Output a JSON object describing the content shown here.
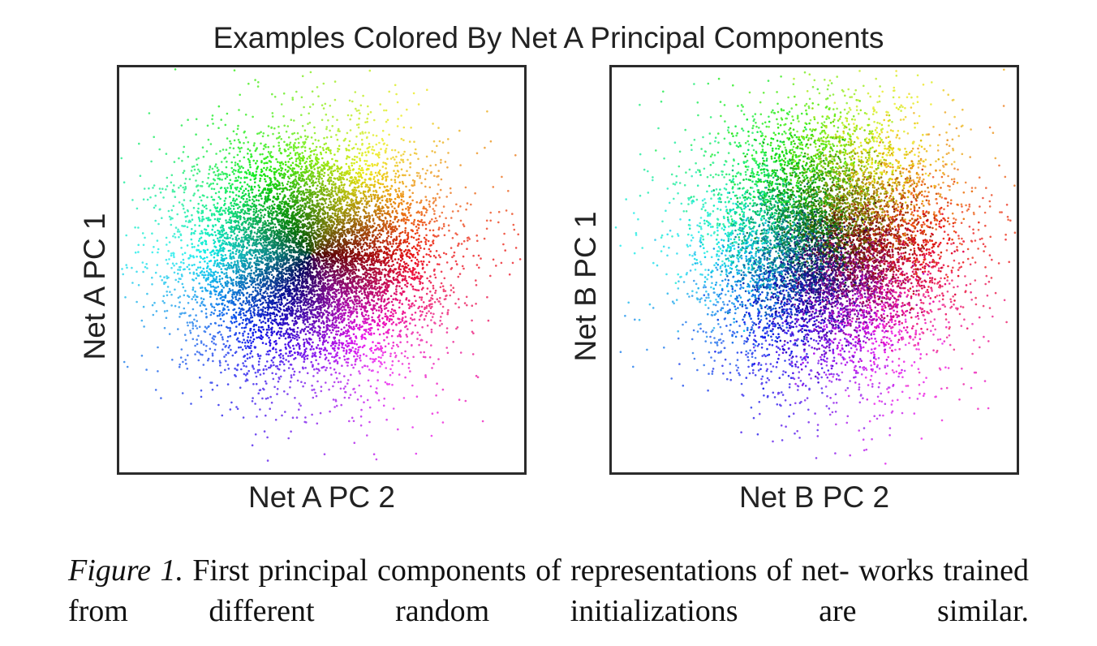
{
  "figure": {
    "title": "Examples Colored By Net A Principal Components",
    "caption_label": "Figure 1.",
    "caption_line1": "First principal components of representations of net-",
    "caption_line2": "works trained from different random initializations are similar."
  },
  "chart_data": [
    {
      "type": "scatter",
      "title": "Examples Colored By Net A Principal Components",
      "xlabel": "Net A PC 2",
      "ylabel": "Net A PC 1",
      "grid": false,
      "legend": "none",
      "ticks": "none",
      "xlim": [
        -4,
        4
      ],
      "ylim": [
        -4,
        4
      ],
      "color_encoding": "hue = angle, brightness = radius in Net A PC space",
      "cloud": {
        "n_points": 9000,
        "center": [
          -0.2,
          0.3
        ],
        "spread": [
          1.25,
          1.15
        ]
      }
    },
    {
      "type": "scatter",
      "xlabel": "Net B PC 2",
      "ylabel": "Net B PC 1",
      "grid": false,
      "legend": "none",
      "ticks": "none",
      "xlim": [
        -4,
        4
      ],
      "ylim": [
        -4,
        4
      ],
      "color_encoding": "same colors as Net A panel",
      "cloud": {
        "n_points": 9000,
        "center": [
          0.3,
          0.5
        ],
        "spread": [
          1.15,
          1.2
        ]
      }
    }
  ]
}
